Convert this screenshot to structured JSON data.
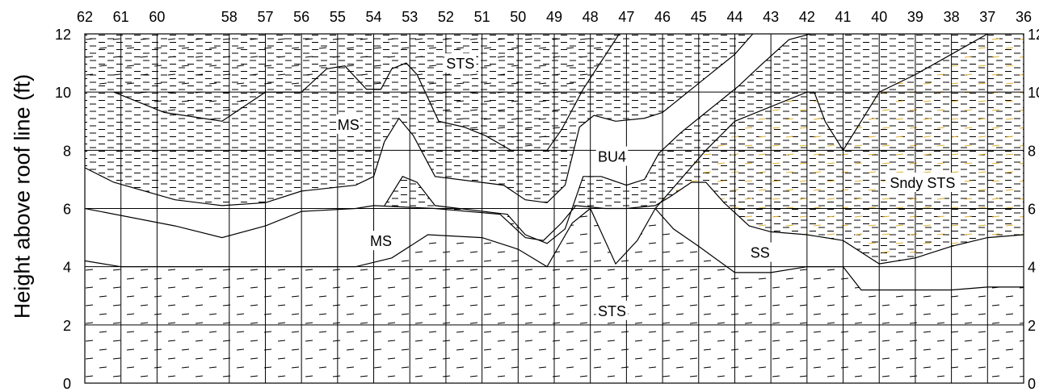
{
  "y_axis": {
    "label": "Height above roof line (ft)",
    "ticks": [
      0,
      2,
      4,
      6,
      8,
      10,
      12
    ],
    "range": [
      0,
      12
    ]
  },
  "x_axis": {
    "ticks": [
      62,
      61,
      60,
      58,
      57,
      56,
      55,
      54,
      53,
      52,
      51,
      50,
      49,
      48,
      47,
      46,
      45,
      44,
      43,
      42,
      41,
      40,
      39,
      38,
      37,
      36
    ],
    "range": [
      62,
      36
    ]
  },
  "units": [
    {
      "label": "STS",
      "x": 51.6,
      "y": 11.0
    },
    {
      "label": "MS",
      "x": 54.7,
      "y": 8.9
    },
    {
      "label": "BU4",
      "x": 47.4,
      "y": 7.8
    },
    {
      "label": "Sndy STS",
      "x": 38.8,
      "y": 6.9
    },
    {
      "label": "MS",
      "x": 53.8,
      "y": 4.9
    },
    {
      "label": "SS",
      "x": 43.3,
      "y": 4.5
    },
    {
      "label": "STS",
      "x": 47.4,
      "y": 2.5
    }
  ],
  "boundaries": {
    "top_sts_base": [
      [
        61.2,
        10.0
      ],
      [
        59.8,
        9.3
      ],
      [
        58.2,
        9.0
      ],
      [
        57.0,
        10.0
      ],
      [
        56.5,
        10.0
      ],
      [
        56.0,
        10.0
      ],
      [
        55.3,
        10.8
      ],
      [
        54.8,
        10.9
      ],
      [
        54.2,
        10.1
      ],
      [
        53.8,
        10.1
      ],
      [
        53.5,
        10.8
      ],
      [
        53.1,
        11.0
      ],
      [
        52.8,
        10.6
      ],
      [
        52.2,
        9.0
      ],
      [
        51.5,
        8.8
      ],
      [
        50.9,
        8.5
      ],
      [
        50.2,
        8.0
      ],
      [
        49.2,
        8.0
      ],
      [
        48.8,
        8.7
      ],
      [
        48.2,
        10.1
      ],
      [
        47.2,
        12.0
      ]
    ],
    "ms_upper_base": [
      [
        62.0,
        7.4
      ],
      [
        61.2,
        6.9
      ],
      [
        59.5,
        6.3
      ],
      [
        58.2,
        6.1
      ],
      [
        57.0,
        6.2
      ],
      [
        56.0,
        6.6
      ],
      [
        54.5,
        6.8
      ],
      [
        54.0,
        7.1
      ],
      [
        53.7,
        8.3
      ],
      [
        53.3,
        9.1
      ],
      [
        52.9,
        8.5
      ],
      [
        52.3,
        7.1
      ],
      [
        50.4,
        6.8
      ],
      [
        49.8,
        6.3
      ],
      [
        49.2,
        6.2
      ],
      [
        48.7,
        6.8
      ],
      [
        48.3,
        8.8
      ],
      [
        47.9,
        9.2
      ],
      [
        47.3,
        9.0
      ],
      [
        46.5,
        9.1
      ],
      [
        46.0,
        9.3
      ],
      [
        45.0,
        10.3
      ],
      [
        44.0,
        11.3
      ],
      [
        43.5,
        12.0
      ]
    ],
    "bu4_base": [
      [
        53.7,
        6.1
      ],
      [
        53.2,
        7.1
      ],
      [
        52.8,
        6.9
      ],
      [
        52.3,
        6.1
      ],
      [
        50.3,
        5.8
      ],
      [
        49.8,
        5.1
      ],
      [
        49.2,
        4.8
      ],
      [
        48.7,
        5.3
      ],
      [
        48.2,
        7.1
      ],
      [
        47.7,
        7.1
      ],
      [
        47.0,
        6.8
      ],
      [
        46.5,
        7.0
      ],
      [
        46.1,
        7.9
      ],
      [
        45.5,
        8.6
      ],
      [
        44.9,
        9.2
      ],
      [
        44.4,
        9.7
      ],
      [
        43.9,
        10.2
      ],
      [
        43.3,
        10.9
      ],
      [
        42.5,
        11.8
      ],
      [
        41.9,
        12.0
      ]
    ],
    "ms_lower_top": [
      [
        62.0,
        6.0
      ],
      [
        59.5,
        5.4
      ],
      [
        58.2,
        5.0
      ],
      [
        57.0,
        5.4
      ],
      [
        56.0,
        5.9
      ],
      [
        54.5,
        6.0
      ],
      [
        54.0,
        6.1
      ],
      [
        52.3,
        6.0
      ],
      [
        50.5,
        5.8
      ],
      [
        49.8,
        5.0
      ],
      [
        49.3,
        4.9
      ],
      [
        48.8,
        5.5
      ],
      [
        48.4,
        6.1
      ],
      [
        47.6,
        6.0
      ],
      [
        47.0,
        6.0
      ],
      [
        46.2,
        6.1
      ],
      [
        45.8,
        6.4
      ],
      [
        45.2,
        6.9
      ],
      [
        44.8,
        6.9
      ],
      [
        44.3,
        6.2
      ],
      [
        43.6,
        5.4
      ],
      [
        43.0,
        5.2
      ],
      [
        42.0,
        5.1
      ],
      [
        41.0,
        4.9
      ],
      [
        40.0,
        4.1
      ],
      [
        39.0,
        4.3
      ],
      [
        38.0,
        4.7
      ],
      [
        37.0,
        5.0
      ],
      [
        36.0,
        5.1
      ]
    ],
    "sts_lower_top": [
      [
        62.0,
        4.2
      ],
      [
        61.0,
        4.0
      ],
      [
        54.5,
        4.0
      ],
      [
        53.5,
        4.3
      ],
      [
        52.5,
        5.1
      ],
      [
        51.0,
        5.0
      ],
      [
        50.0,
        4.6
      ],
      [
        49.2,
        4.0
      ],
      [
        48.5,
        5.5
      ],
      [
        48.0,
        6.0
      ],
      [
        47.3,
        4.1
      ],
      [
        46.7,
        4.9
      ],
      [
        46.2,
        6.0
      ],
      [
        45.7,
        5.3
      ],
      [
        45.0,
        4.7
      ],
      [
        44.0,
        3.8
      ],
      [
        43.0,
        3.8
      ],
      [
        42.0,
        4.0
      ],
      [
        41.0,
        4.0
      ],
      [
        40.5,
        3.2
      ],
      [
        39.0,
        3.2
      ],
      [
        38.0,
        3.2
      ],
      [
        37.0,
        3.3
      ],
      [
        36.0,
        3.3
      ]
    ],
    "sandy_sts_left_edge": [
      [
        46.2,
        6.0
      ],
      [
        45.5,
        7.0
      ],
      [
        44.8,
        8.0
      ],
      [
        44.0,
        9.0
      ],
      [
        43.0,
        9.5
      ],
      [
        42.0,
        10.0
      ],
      [
        41.8,
        10.0
      ],
      [
        41.5,
        9.0
      ],
      [
        41.0,
        8.0
      ],
      [
        40.5,
        9.0
      ],
      [
        40.0,
        10.0
      ],
      [
        39.0,
        10.6
      ],
      [
        38.0,
        11.3
      ],
      [
        37.0,
        12.0
      ]
    ]
  },
  "colors": {
    "line": "#000000",
    "dash": "#000000",
    "sandy_dash": "#e0b030",
    "background": "#ffffff"
  }
}
